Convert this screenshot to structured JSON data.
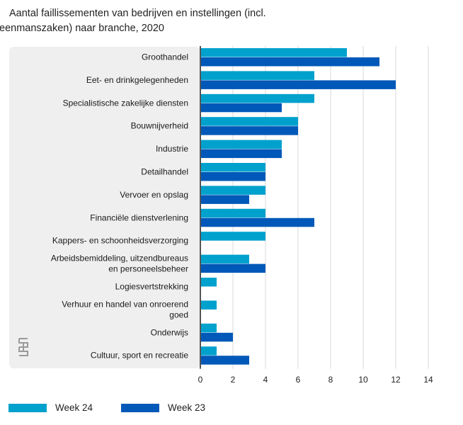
{
  "title_line1": "Aantal faillissementen van bedrijven en instellingen (incl.",
  "title_line2": "eenmanszaken) naar branche, 2020",
  "colors": {
    "week24": "#00a1cd",
    "week23": "#0058b8",
    "panel": "#efefef",
    "grid": "#d9d9d9",
    "axis": "#555555"
  },
  "chart_data": {
    "type": "bar",
    "orientation": "horizontal",
    "title": "Aantal faillissementen van bedrijven en instellingen (incl. eenmanszaken) naar branche, 2020",
    "categories": [
      [
        "Groothandel"
      ],
      [
        "Eet- en drinkgelegenheden"
      ],
      [
        "Specialistische zakelijke diensten"
      ],
      [
        "Bouwnijverheid"
      ],
      [
        "Industrie"
      ],
      [
        "Detailhandel"
      ],
      [
        "Vervoer en opslag"
      ],
      [
        "Financiële dienstverlening"
      ],
      [
        "Kappers- en schoonheidsverzorging"
      ],
      [
        "Arbeidsbemiddeling, uitzendbureaus",
        "en personeelsbeheer"
      ],
      [
        "Logiesvertstrekking"
      ],
      [
        "Verhuur en handel van onroerend",
        "goed"
      ],
      [
        "Onderwijs"
      ],
      [
        "Cultuur, sport en recreatie"
      ]
    ],
    "series": [
      {
        "name": "Week 24",
        "values": [
          9,
          7,
          7,
          6,
          5,
          4,
          4,
          4,
          4,
          3,
          1,
          1,
          1,
          1
        ]
      },
      {
        "name": "Week 23",
        "values": [
          11,
          12,
          5,
          6,
          5,
          4,
          3,
          7,
          0,
          4,
          0,
          0,
          2,
          3
        ]
      }
    ],
    "xlim": [
      0,
      14
    ],
    "xticks": [
      0,
      2,
      4,
      6,
      8,
      10,
      12,
      14
    ],
    "grid": true,
    "legend": "bottom-left"
  }
}
